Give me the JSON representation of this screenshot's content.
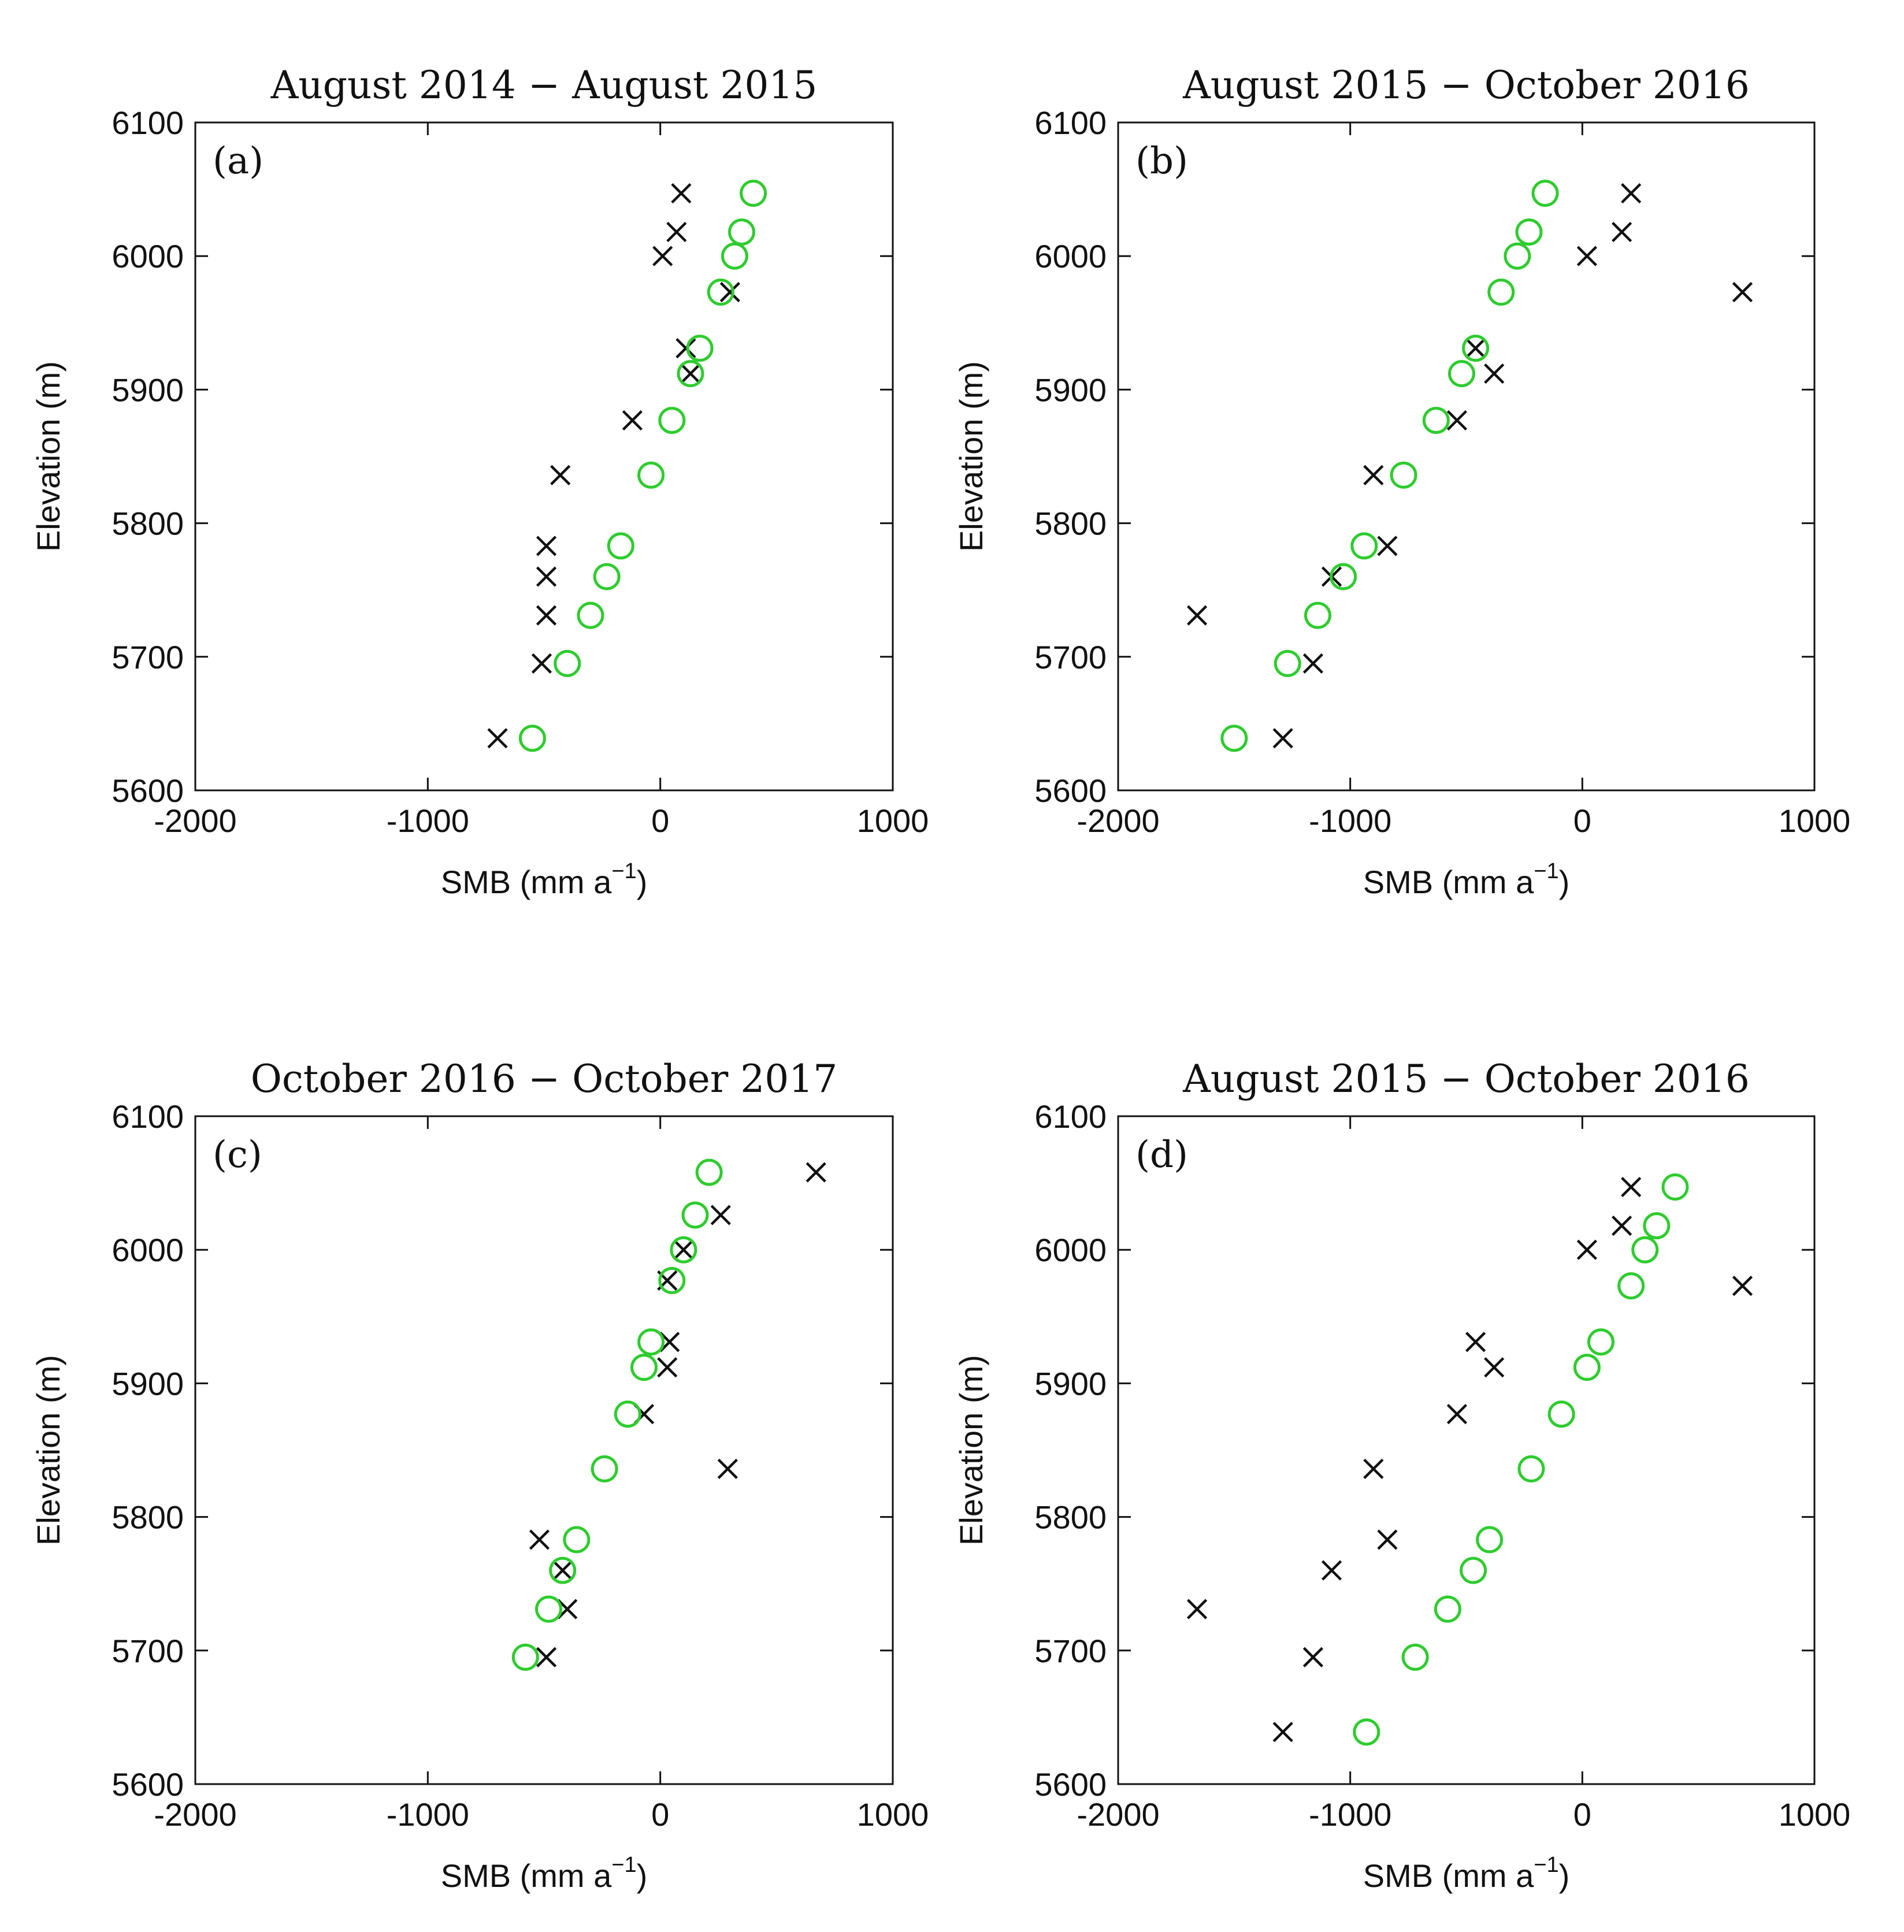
{
  "colors": {
    "observed": "#111111",
    "modeled": "#2ecc2e",
    "axes": "#111111"
  },
  "chart_data": [
    {
      "type": "scatter",
      "panel_label": "(a)",
      "title": "August  2014 − August  2015",
      "xlabel": "SMB (mm a",
      "xlabel_sup": "−1",
      "xlabel_close": ")",
      "ylabel": "Elevation (m)",
      "xlim": [
        -2000,
        1000
      ],
      "ylim": [
        5600,
        6100
      ],
      "xticks": [
        "-2000",
        "-1000",
        "0",
        "1000"
      ],
      "yticks": [
        "5600",
        "5700",
        "5800",
        "5900",
        "6000",
        "6100"
      ],
      "series": [
        {
          "name": "crosses",
          "marker": "x",
          "points": [
            [
              90,
              6047
            ],
            [
              70,
              6018
            ],
            [
              10,
              6000
            ],
            [
              300,
              5973
            ],
            [
              110,
              5931
            ],
            [
              130,
              5912
            ],
            [
              -120,
              5877
            ],
            [
              -430,
              5836
            ],
            [
              -490,
              5783
            ],
            [
              -490,
              5760
            ],
            [
              -490,
              5731
            ],
            [
              -510,
              5695
            ],
            [
              -700,
              5639
            ]
          ]
        },
        {
          "name": "circles",
          "marker": "o",
          "points": [
            [
              400,
              6047
            ],
            [
              350,
              6018
            ],
            [
              320,
              6000
            ],
            [
              260,
              5973
            ],
            [
              170,
              5931
            ],
            [
              130,
              5912
            ],
            [
              50,
              5877
            ],
            [
              -40,
              5836
            ],
            [
              -170,
              5783
            ],
            [
              -230,
              5760
            ],
            [
              -300,
              5731
            ],
            [
              -400,
              5695
            ],
            [
              -550,
              5639
            ]
          ]
        }
      ]
    },
    {
      "type": "scatter",
      "panel_label": "(b)",
      "title": "August  2015 − October  2016",
      "xlabel": "SMB (mm a",
      "xlabel_sup": "−1",
      "xlabel_close": ")",
      "ylabel": "Elevation (m)",
      "xlim": [
        -2000,
        1000
      ],
      "ylim": [
        5600,
        6100
      ],
      "xticks": [
        "-2000",
        "-1000",
        "0",
        "1000"
      ],
      "yticks": [
        "5600",
        "5700",
        "5800",
        "5900",
        "6000",
        "6100"
      ],
      "series": [
        {
          "name": "crosses",
          "marker": "x",
          "points": [
            [
              210,
              6047
            ],
            [
              170,
              6018
            ],
            [
              20,
              6000
            ],
            [
              690,
              5973
            ],
            [
              -460,
              5931
            ],
            [
              -380,
              5912
            ],
            [
              -540,
              5877
            ],
            [
              -900,
              5836
            ],
            [
              -840,
              5783
            ],
            [
              -1080,
              5760
            ],
            [
              -1660,
              5731
            ],
            [
              -1160,
              5695
            ],
            [
              -1290,
              5639
            ]
          ]
        },
        {
          "name": "circles",
          "marker": "o",
          "points": [
            [
              -160,
              6047
            ],
            [
              -230,
              6018
            ],
            [
              -280,
              6000
            ],
            [
              -350,
              5973
            ],
            [
              -460,
              5931
            ],
            [
              -520,
              5912
            ],
            [
              -630,
              5877
            ],
            [
              -770,
              5836
            ],
            [
              -940,
              5783
            ],
            [
              -1030,
              5760
            ],
            [
              -1140,
              5731
            ],
            [
              -1270,
              5695
            ],
            [
              -1500,
              5639
            ]
          ]
        }
      ]
    },
    {
      "type": "scatter",
      "panel_label": "(c)",
      "title": "October  2016 − October  2017",
      "xlabel": "SMB (mm a",
      "xlabel_sup": "−1",
      "xlabel_close": ")",
      "ylabel": "Elevation (m)",
      "xlim": [
        -2000,
        1000
      ],
      "ylim": [
        5600,
        6100
      ],
      "xticks": [
        "-2000",
        "-1000",
        "0",
        "1000"
      ],
      "yticks": [
        "5600",
        "5700",
        "5800",
        "5900",
        "6000",
        "6100"
      ],
      "series": [
        {
          "name": "crosses",
          "marker": "x",
          "points": [
            [
              670,
              6058
            ],
            [
              260,
              6026
            ],
            [
              100,
              6000
            ],
            [
              30,
              5977
            ],
            [
              40,
              5931
            ],
            [
              30,
              5912
            ],
            [
              -70,
              5877
            ],
            [
              290,
              5836
            ],
            [
              -520,
              5783
            ],
            [
              -420,
              5760
            ],
            [
              -400,
              5731
            ],
            [
              -490,
              5695
            ]
          ]
        },
        {
          "name": "circles",
          "marker": "o",
          "points": [
            [
              210,
              6058
            ],
            [
              150,
              6026
            ],
            [
              100,
              6000
            ],
            [
              50,
              5977
            ],
            [
              -40,
              5931
            ],
            [
              -70,
              5912
            ],
            [
              -140,
              5877
            ],
            [
              -240,
              5836
            ],
            [
              -360,
              5783
            ],
            [
              -420,
              5760
            ],
            [
              -480,
              5731
            ],
            [
              -580,
              5695
            ]
          ]
        }
      ]
    },
    {
      "type": "scatter",
      "panel_label": "(d)",
      "title": "August  2015 − October  2016",
      "xlabel": "SMB (mm a",
      "xlabel_sup": "−1",
      "xlabel_close": ")",
      "ylabel": "Elevation (m)",
      "xlim": [
        -2000,
        1000
      ],
      "ylim": [
        5600,
        6100
      ],
      "xticks": [
        "-2000",
        "-1000",
        "0",
        "1000"
      ],
      "yticks": [
        "5600",
        "5700",
        "5800",
        "5900",
        "6000",
        "6100"
      ],
      "series": [
        {
          "name": "crosses",
          "marker": "x",
          "points": [
            [
              210,
              6047
            ],
            [
              170,
              6018
            ],
            [
              20,
              6000
            ],
            [
              690,
              5973
            ],
            [
              -460,
              5931
            ],
            [
              -380,
              5912
            ],
            [
              -540,
              5877
            ],
            [
              -900,
              5836
            ],
            [
              -840,
              5783
            ],
            [
              -1080,
              5760
            ],
            [
              -1660,
              5731
            ],
            [
              -1160,
              5695
            ],
            [
              -1290,
              5639
            ]
          ]
        },
        {
          "name": "circles",
          "marker": "o",
          "points": [
            [
              400,
              6047
            ],
            [
              320,
              6018
            ],
            [
              270,
              6000
            ],
            [
              210,
              5973
            ],
            [
              80,
              5931
            ],
            [
              20,
              5912
            ],
            [
              -90,
              5877
            ],
            [
              -220,
              5836
            ],
            [
              -400,
              5783
            ],
            [
              -470,
              5760
            ],
            [
              -580,
              5731
            ],
            [
              -720,
              5695
            ],
            [
              -930,
              5639
            ]
          ]
        }
      ]
    }
  ]
}
